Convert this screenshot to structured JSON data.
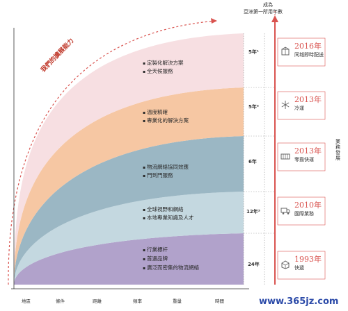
{
  "header": {
    "line1": "成為",
    "line2": "亞洲第一所用年數"
  },
  "arc_label": "我們的擴展能力",
  "side_vertical_label": "業務發展",
  "colors": {
    "band1": "#f7dfe2",
    "band2": "#f6c7a3",
    "band3": "#9bb7c4",
    "band4": "#c4d8e0",
    "band5": "#b1a2cb",
    "accent": "#d9534f"
  },
  "bands": [
    {
      "bullets": [
        "定製化解決方案",
        "全天候服務"
      ],
      "years": "5年¹",
      "year_label": "2016年",
      "service": "同城即時配送",
      "icon": "box-icon"
    },
    {
      "bullets": [
        "溫度精確",
        "專業化的解決方案"
      ],
      "years": "5年²",
      "year_label": "2013年",
      "service": "冷運",
      "icon": "snowflake-icon"
    },
    {
      "bullets": [
        "物流網絡協同效應",
        "門到門服務"
      ],
      "years": "6年",
      "year_label": "2013年",
      "service": "零擔快運",
      "icon": "container-icon"
    },
    {
      "bullets": [
        "全球視野和網絡",
        "本地專業知識及人才"
      ],
      "years": "12年³",
      "year_label": "2010年",
      "service": "國際業務",
      "icon": "truck-icon"
    },
    {
      "bullets": [
        "行業標杆",
        "首選品牌",
        "廣泛而密集的物流網絡"
      ],
      "years": "24年",
      "year_label": "1993年",
      "service": "快遞",
      "icon": "parcel-icon"
    }
  ],
  "axis_labels": [
    "地區",
    "條件",
    "距離",
    "頻率",
    "重量",
    "時間"
  ],
  "watermark": "www.365jz.com"
}
